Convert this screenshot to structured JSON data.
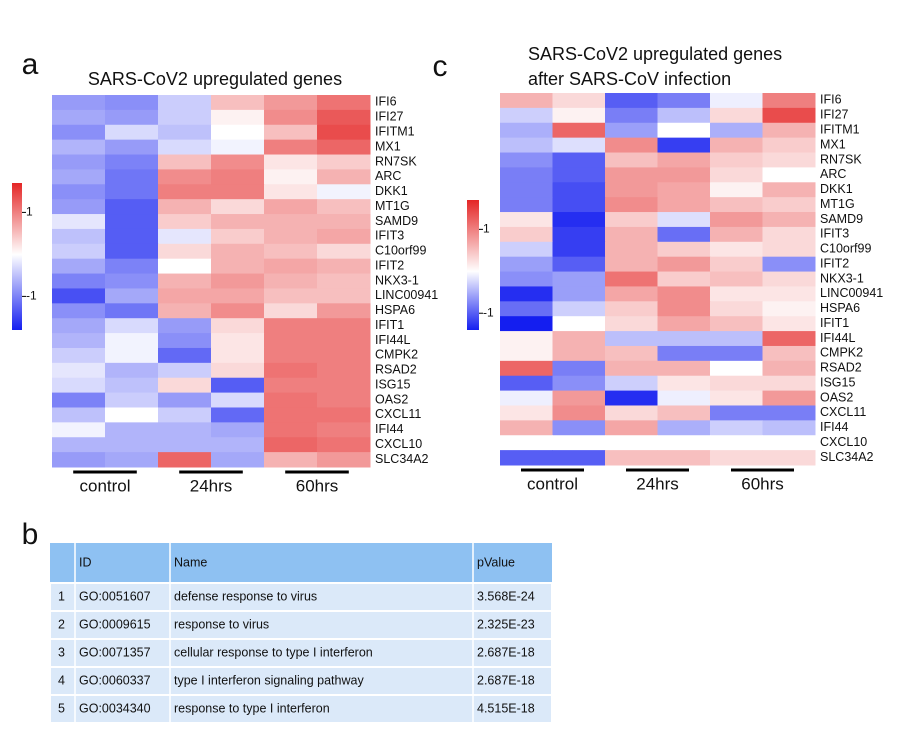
{
  "chart_data": [
    {
      "type": "heatmap",
      "panel": "a",
      "title": [
        "SARS-CoV2 upregulated genes"
      ],
      "rows": [
        "IFI6",
        "IFI27",
        "IFITM1",
        "MX1",
        "RN7SK",
        "ARC",
        "DKK1",
        "MT1G",
        "SAMD9",
        "IFIT3",
        "C10orf99",
        "IFIT2",
        "NKX3-1",
        "LINC00941",
        "HSPA6",
        "IFIT1",
        "IFI44L",
        "CMPK2",
        "RSAD2",
        "ISG15",
        "OAS2",
        "CXCL11",
        "IFI44",
        "CXCL10",
        "SLC34A2"
      ],
      "x_groups": [
        "control",
        "24hrs",
        "60hrs"
      ],
      "values": [
        [
          -0.8,
          -0.9,
          -0.4,
          0.5,
          0.8,
          1.1
        ],
        [
          -0.7,
          -0.8,
          -0.4,
          0.1,
          0.9,
          1.3
        ],
        [
          -0.9,
          -0.3,
          -0.5,
          0,
          0.5,
          1.4
        ],
        [
          -0.6,
          -0.8,
          -0.3,
          -0.1,
          1.0,
          1.2
        ],
        [
          -0.8,
          -1.0,
          0.5,
          0.9,
          0.2,
          0.4
        ],
        [
          -0.7,
          -1.1,
          0.9,
          1.0,
          0.1,
          0.6
        ],
        [
          -0.9,
          -1.1,
          1.0,
          1.0,
          0.2,
          -0.1
        ],
        [
          -0.8,
          -1.3,
          0.6,
          0.3,
          0.7,
          0.5
        ],
        [
          -0.2,
          -1.3,
          0.4,
          0.6,
          0.6,
          0.6
        ],
        [
          -0.5,
          -1.3,
          -0.2,
          0.4,
          0.6,
          0.7
        ],
        [
          -0.4,
          -1.3,
          0.3,
          0.6,
          0.5,
          0.3
        ],
        [
          -0.7,
          -1.0,
          0,
          0.6,
          0.7,
          0.6
        ],
        [
          -1.0,
          -0.9,
          0.6,
          0.8,
          0.6,
          0.5
        ],
        [
          -1.4,
          -0.7,
          0.7,
          0.7,
          0.5,
          0.5
        ],
        [
          -0.9,
          -1.1,
          0.6,
          0.9,
          0.3,
          0.8
        ],
        [
          -0.7,
          -0.3,
          -0.8,
          0.3,
          1.0,
          1.0
        ],
        [
          -0.6,
          -0.1,
          -0.9,
          0.2,
          1.0,
          1.0
        ],
        [
          -0.4,
          -0.1,
          -1.2,
          0.2,
          1.0,
          1.0
        ],
        [
          -0.2,
          -0.6,
          -0.4,
          0.3,
          1.1,
          1.0
        ],
        [
          -0.3,
          -0.5,
          0.3,
          -1.3,
          1.0,
          1.0
        ],
        [
          -1.0,
          -0.4,
          -0.8,
          -0.3,
          1.1,
          1.0
        ],
        [
          -0.5,
          0,
          -0.4,
          -1.2,
          1.1,
          1.1
        ],
        [
          -0.1,
          -0.6,
          -0.6,
          -0.7,
          1.1,
          1.0
        ],
        [
          -0.6,
          -0.6,
          -0.6,
          -0.6,
          1.2,
          1.1
        ],
        [
          -0.8,
          -0.7,
          1.2,
          -0.7,
          0.6,
          0.8
        ]
      ],
      "zlim": [
        -1.8,
        1.7
      ],
      "zticks": [
        -1,
        1
      ]
    },
    {
      "type": "heatmap",
      "panel": "c",
      "title": [
        "SARS-CoV2 upregulated genes",
        "after SARS-CoV infection"
      ],
      "rows": [
        "IFI6",
        "IFI27",
        "IFITM1",
        "MX1",
        "RN7SK",
        "ARC",
        "DKK1",
        "MT1G",
        "SAMD9",
        "IFIT3",
        "C10orf99",
        "IFIT2",
        "NKX3-1",
        "LINC00941",
        "HSPA6",
        "IFIT1",
        "IFI44L",
        "CMPK2",
        "RSAD2",
        "ISG15",
        "OAS2",
        "CXCL11",
        "IFI44",
        "CXCL10",
        "SLC34A2"
      ],
      "x_groups": [
        "control",
        "24hrs",
        "60hrs"
      ],
      "values": [
        [
          0.6,
          0.3,
          -1.0,
          -0.8,
          -0.1,
          1.0
        ],
        [
          -0.3,
          0.1,
          -0.8,
          -0.4,
          0.3,
          1.4
        ],
        [
          -0.5,
          1.2,
          -0.6,
          0,
          -0.5,
          0.6
        ],
        [
          -0.4,
          -0.2,
          0.9,
          -1.2,
          0.6,
          0.4
        ],
        [
          -0.7,
          -1.0,
          0.5,
          0.7,
          0.4,
          0.3
        ],
        [
          -0.8,
          -1.0,
          0.8,
          0.8,
          0.3,
          0
        ],
        [
          -0.8,
          -1.1,
          0.8,
          0.7,
          0.1,
          0.6
        ],
        [
          -0.8,
          -1.1,
          0.9,
          0.7,
          0.5,
          0.4
        ],
        [
          0.2,
          -1.3,
          0.4,
          -0.2,
          0.8,
          0.6
        ],
        [
          0.4,
          -1.2,
          0.6,
          -0.9,
          0.6,
          0.3
        ],
        [
          -0.3,
          -1.2,
          0.6,
          0.4,
          0.2,
          0.3
        ],
        [
          -0.6,
          -1.0,
          0.6,
          0.8,
          0.4,
          -0.7
        ],
        [
          -0.7,
          -0.6,
          1.1,
          0.4,
          0.5,
          0.3
        ],
        [
          -1.3,
          -0.6,
          0.7,
          0.9,
          0.2,
          0.2
        ],
        [
          -0.9,
          -0.3,
          0.4,
          0.9,
          0.3,
          0.1
        ],
        [
          -1.4,
          0,
          0.3,
          0.7,
          0.5,
          0.2
        ],
        [
          0.1,
          0.6,
          -0.4,
          -0.4,
          -0.4,
          1.2
        ],
        [
          0.1,
          0.6,
          0.5,
          -0.8,
          -0.8,
          0.5
        ],
        [
          1.2,
          -0.8,
          0.6,
          0.6,
          0,
          0.6
        ],
        [
          -1.0,
          -0.7,
          -0.3,
          0.2,
          0.3,
          0.3
        ],
        [
          -0.1,
          0.8,
          -1.3,
          -0.1,
          0.2,
          0.8
        ],
        [
          0.2,
          0.9,
          0.3,
          0.5,
          -0.8,
          -0.8
        ],
        [
          0.6,
          -0.7,
          0.7,
          -0.5,
          -0.3,
          -0.4
        ],
        [
          null,
          null,
          null,
          null,
          null,
          null
        ],
        [
          -1.0,
          -1.0,
          0.5,
          0.5,
          0.3,
          0.3
        ]
      ],
      "zlim": [
        -1.4,
        1.7
      ],
      "zticks": [
        -1,
        1
      ]
    }
  ],
  "table": {
    "panel": "b",
    "header": [
      "ID",
      "Name",
      "pValue"
    ],
    "rows": [
      [
        1,
        "GO:0051607",
        "defense response to virus",
        "3.568E-24"
      ],
      [
        2,
        "GO:0009615",
        "response to virus",
        "2.325E-23"
      ],
      [
        3,
        "GO:0071357",
        "cellular response to type I interferon",
        "2.687E-18"
      ],
      [
        4,
        "GO:0060337",
        "type I interferon signaling pathway",
        "2.687E-18"
      ],
      [
        5,
        "GO:0034340",
        "response to type I interferon",
        "4.515E-18"
      ]
    ]
  }
}
